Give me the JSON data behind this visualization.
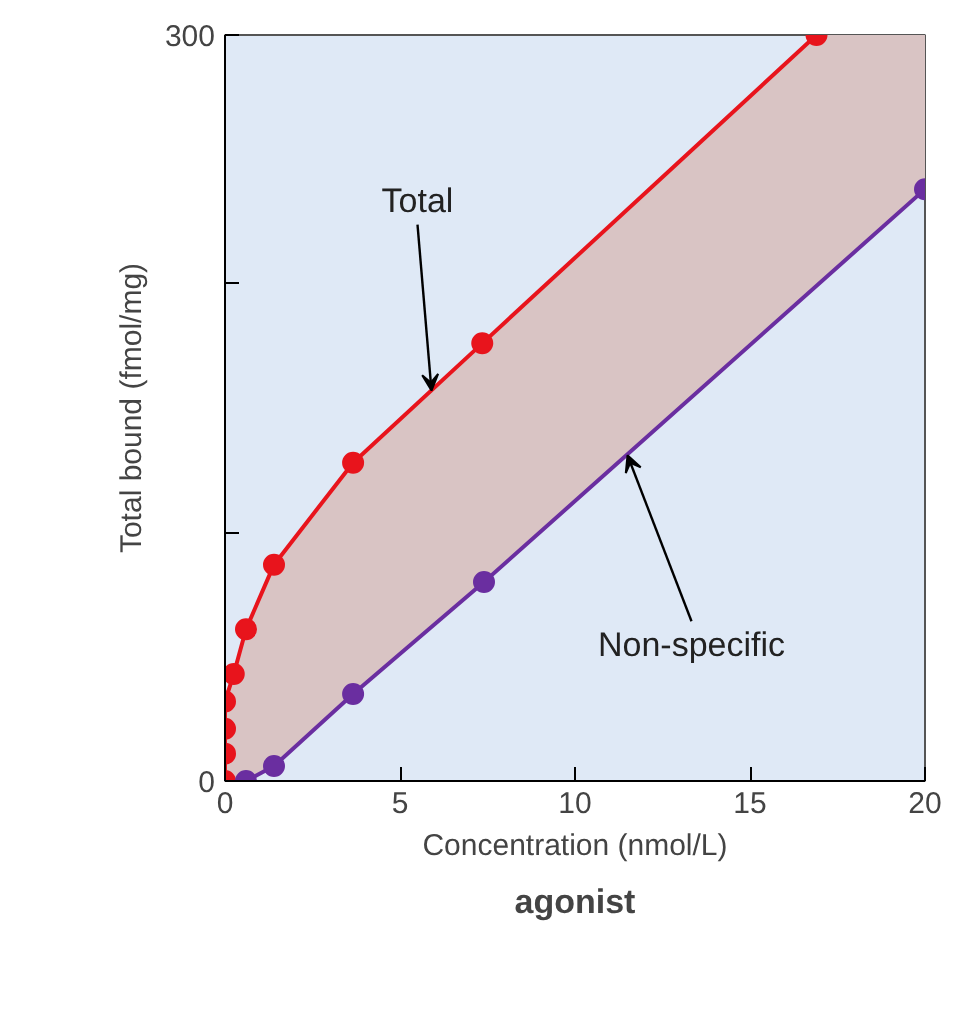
{
  "chart_data": {
    "type": "line",
    "xlabel": "Concentration (nmol/L)",
    "ylabel": "Total bound (fmol/mg)",
    "xlim": [
      0,
      20
    ],
    "ylim": [
      0,
      300
    ],
    "xticks": [
      0,
      5,
      10,
      15,
      20
    ],
    "yticks": [
      0,
      {
        "value": 100,
        "label": null
      },
      {
        "value": 200,
        "label": null
      },
      300
    ],
    "grid": false,
    "marker": "circle",
    "line_style": "solid",
    "series": [
      {
        "color": "#e8141c",
        "x": [
          0,
          0,
          0,
          0,
          0.25,
          0.6,
          1.4,
          3.66,
          7.35,
          16.9,
          20
        ],
        "values": [
          0,
          11,
          21,
          32,
          43,
          61,
          87,
          128,
          176,
          300,
          null
        ],
        "lower": [
          0,
          0,
          0,
          0,
          0,
          0,
          6,
          35,
          80,
          199,
          238
        ],
        "upper": [
          0,
          11,
          21,
          32,
          43,
          61,
          87,
          128,
          176,
          300,
          300
        ]
      },
      {
        "color": "#6a2ea0",
        "x": [
          0.6,
          1.4,
          3.66,
          7.4,
          20
        ],
        "values": [
          0,
          6,
          35,
          80,
          238
        ]
      }
    ],
    "annotations": [
      {
        "text": "Total",
        "x": 5.9,
        "y": 157
      },
      {
        "text": "Non-specific",
        "x": 11.5,
        "y": 131
      },
      "agonist"
    ]
  }
}
